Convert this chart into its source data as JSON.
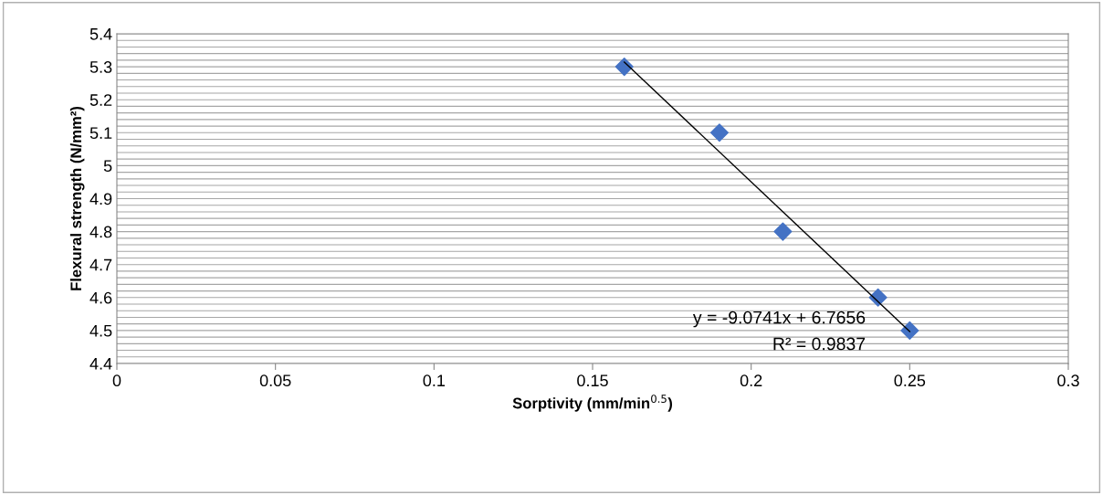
{
  "chart_data": {
    "type": "scatter",
    "xlabel": "Sorptivity (mm/min$^{0.5}$)",
    "ylabel": "Flexural strength (N/mm²)",
    "x": [
      0.16,
      0.19,
      0.21,
      0.24,
      0.25
    ],
    "series": [
      {
        "color": "#4472c4",
        "marker": "diamond",
        "values": [
          5.3,
          5.1,
          4.8,
          4.6,
          4.5
        ]
      },
      {
        "type": "line",
        "color": "#000000",
        "marker": "none",
        "x": [
          0.16,
          0.25
        ],
        "values": [
          5.314,
          4.497
        ]
      }
    ],
    "annotations": [
      "y = -9.0741x + 6.7656",
      "R² = 0.9837"
    ],
    "xlim": [
      0,
      0.3
    ],
    "xticks": [
      0,
      0.05,
      0.1,
      0.15,
      0.2,
      0.25,
      0.3
    ],
    "ylim": [
      4.4,
      5.4
    ],
    "yticks": [
      4.4,
      {
        "value": 4.42,
        "label": null
      },
      {
        "value": 4.44,
        "label": null
      },
      {
        "value": 4.46,
        "label": null
      },
      {
        "value": 4.48,
        "label": null
      },
      4.5,
      {
        "value": 4.52,
        "label": null
      },
      {
        "value": 4.54,
        "label": null
      },
      {
        "value": 4.56,
        "label": null
      },
      {
        "value": 4.58,
        "label": null
      },
      4.6,
      {
        "value": 4.62,
        "label": null
      },
      {
        "value": 4.64,
        "label": null
      },
      {
        "value": 4.66,
        "label": null
      },
      {
        "value": 4.68,
        "label": null
      },
      4.7,
      {
        "value": 4.72,
        "label": null
      },
      {
        "value": 4.74,
        "label": null
      },
      {
        "value": 4.76,
        "label": null
      },
      {
        "value": 4.78,
        "label": null
      },
      4.8,
      {
        "value": 4.82,
        "label": null
      },
      {
        "value": 4.84,
        "label": null
      },
      {
        "value": 4.86,
        "label": null
      },
      {
        "value": 4.88,
        "label": null
      },
      4.9,
      {
        "value": 4.92,
        "label": null
      },
      {
        "value": 4.94,
        "label": null
      },
      {
        "value": 4.96,
        "label": null
      },
      {
        "value": 4.98,
        "label": null
      },
      5,
      {
        "value": 5.02,
        "label": null
      },
      {
        "value": 5.04,
        "label": null
      },
      {
        "value": 5.06,
        "label": null
      },
      {
        "value": 5.08,
        "label": null
      },
      5.1,
      {
        "value": 5.12,
        "label": null
      },
      {
        "value": 5.14,
        "label": null
      },
      {
        "value": 5.16,
        "label": null
      },
      {
        "value": 5.18,
        "label": null
      },
      5.2,
      {
        "value": 5.22,
        "label": null
      },
      {
        "value": 5.24,
        "label": null
      },
      {
        "value": 5.26,
        "label": null
      },
      {
        "value": 5.28,
        "label": null
      },
      5.3,
      {
        "value": 5.32,
        "label": null
      },
      {
        "value": 5.34,
        "label": null
      },
      {
        "value": 5.36,
        "label": null
      },
      {
        "value": 5.38,
        "label": null
      },
      5.4
    ],
    "grid": "y"
  }
}
